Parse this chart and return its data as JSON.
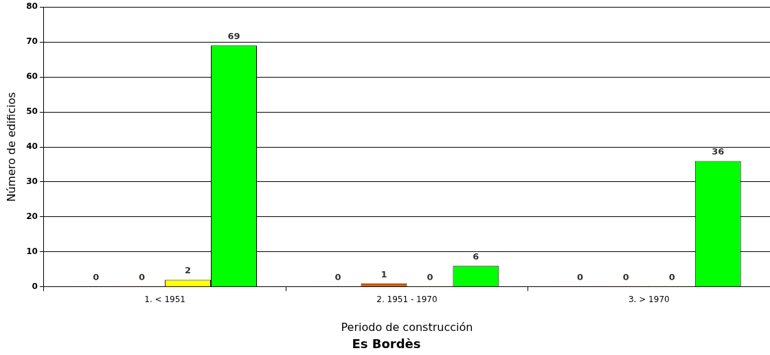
{
  "chart_data": {
    "type": "bar",
    "title": "Es Bordès",
    "xlabel": "Periodo de construcción",
    "ylabel": "Número de edificios",
    "categories": [
      "1. < 1951",
      "2. 1951 - 1970",
      "3. > 1970"
    ],
    "series": [
      {
        "color": "#ff0000",
        "values": [
          0,
          0,
          0
        ]
      },
      {
        "color": "#e06000",
        "values": [
          0,
          1,
          0
        ]
      },
      {
        "color": "#ffff00",
        "values": [
          2,
          0,
          0
        ]
      },
      {
        "color": "#00ff00",
        "values": [
          69,
          6,
          36
        ]
      }
    ],
    "ylim": [
      0,
      80
    ],
    "yticks": [
      0,
      10,
      20,
      30,
      40,
      50,
      60,
      70,
      80
    ],
    "grid": "y",
    "legend": false,
    "data_labels": true
  }
}
